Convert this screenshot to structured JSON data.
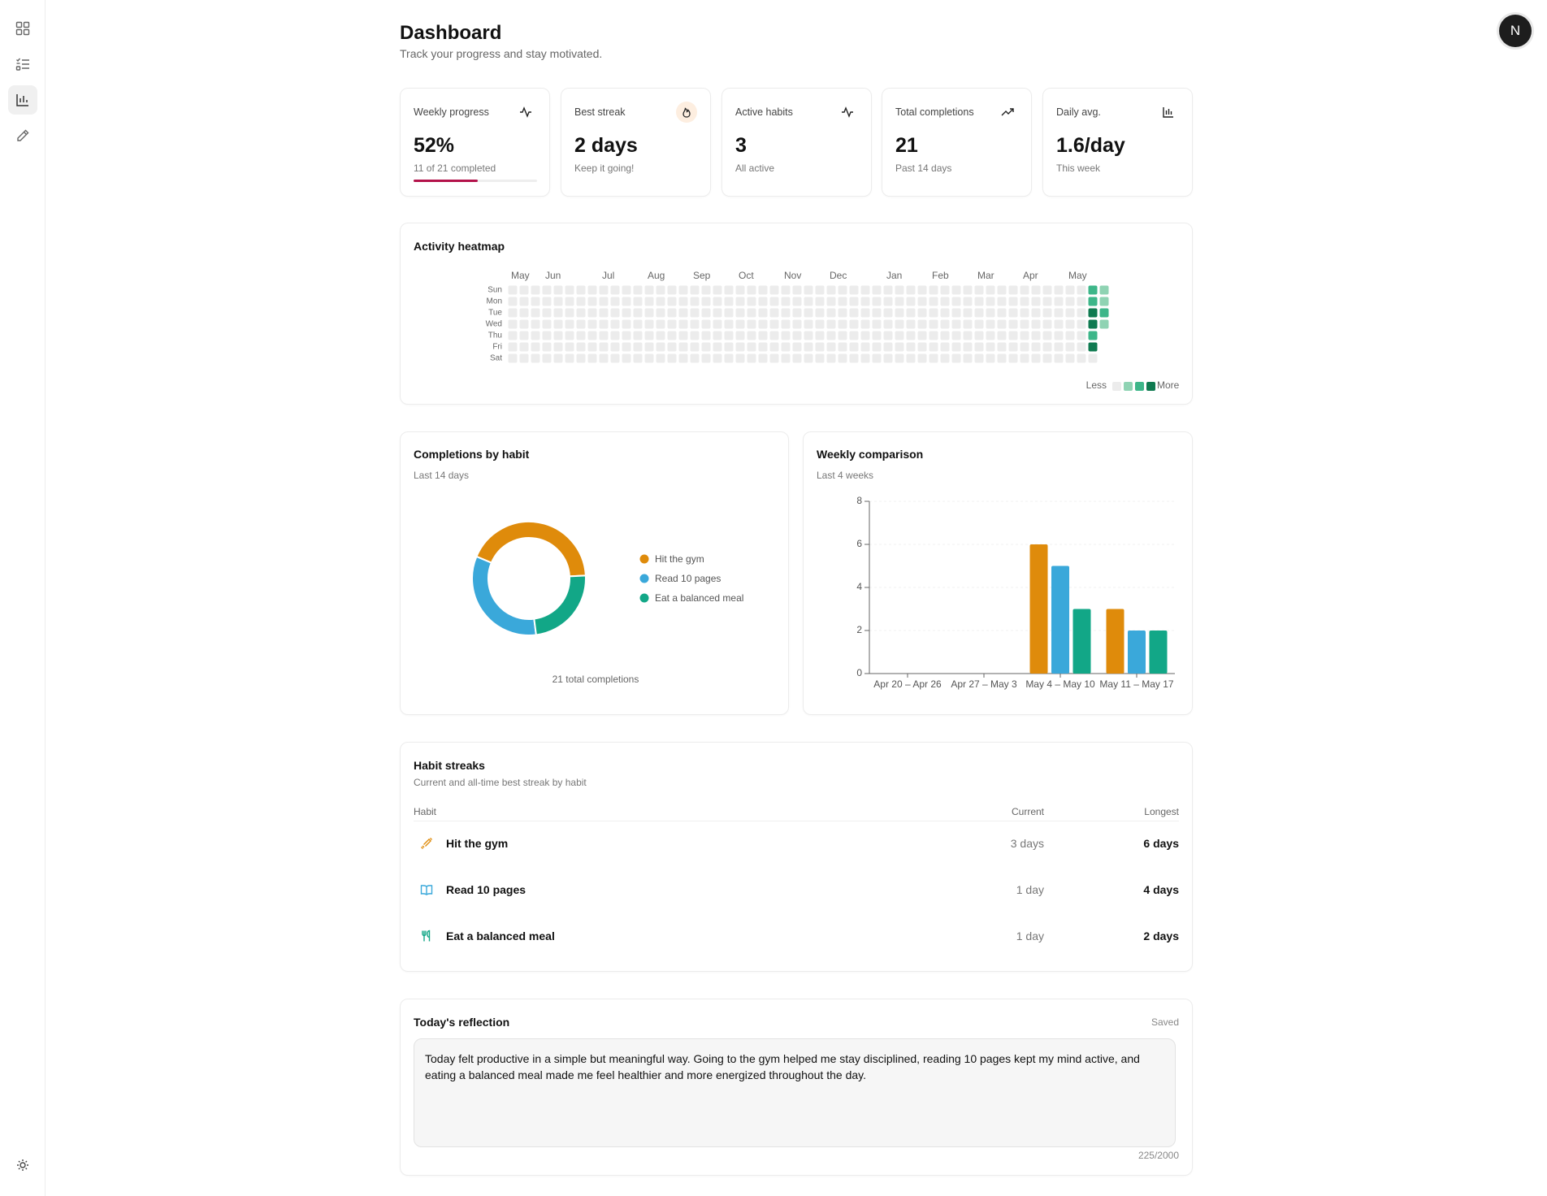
{
  "sidebar": {
    "avatar": "N"
  },
  "header": {
    "title": "Dashboard",
    "subtitle": "Track your progress and stay motivated."
  },
  "stats": [
    {
      "label": "Weekly progress",
      "value": "52%",
      "progress": 52,
      "note": "11 of 21 completed"
    },
    {
      "label": "Best streak",
      "value": "2 days",
      "note": "Keep it going!"
    },
    {
      "label": "Active habits",
      "value": "3",
      "note": "All active"
    },
    {
      "label": "Total completions",
      "value": "21",
      "note": "Past 14 days"
    },
    {
      "label": "Daily avg.",
      "value": "1.6/day",
      "note": "This week"
    }
  ],
  "heatmap": {
    "title": "Activity heatmap",
    "months": [
      "May",
      "Jun",
      "Jul",
      "Aug",
      "Sep",
      "Oct",
      "Nov",
      "Dec",
      "Jan",
      "Feb",
      "Mar",
      "Apr",
      "May"
    ],
    "days": [
      "Sun",
      "Mon",
      "Tue",
      "Wed",
      "Thu",
      "Fri",
      "Sat"
    ],
    "colors": [
      "#ececec",
      "#8fd3b3",
      "#3db689",
      "#0f7a50"
    ],
    "legend_less": "Less",
    "legend_more": "More",
    "weeks": [
      [
        0,
        0,
        0,
        0,
        0,
        0,
        0
      ],
      [
        0,
        0,
        0,
        0,
        0,
        0,
        0
      ],
      [
        0,
        0,
        0,
        0,
        0,
        0,
        0
      ],
      [
        0,
        0,
        0,
        0,
        0,
        0,
        0
      ],
      [
        0,
        0,
        0,
        0,
        0,
        0,
        0
      ],
      [
        0,
        0,
        0,
        0,
        0,
        0,
        0
      ],
      [
        0,
        0,
        0,
        0,
        0,
        0,
        0
      ],
      [
        0,
        0,
        0,
        0,
        0,
        0,
        0
      ],
      [
        0,
        0,
        0,
        0,
        0,
        0,
        0
      ],
      [
        0,
        0,
        0,
        0,
        0,
        0,
        0
      ],
      [
        0,
        0,
        0,
        0,
        0,
        0,
        0
      ],
      [
        0,
        0,
        0,
        0,
        0,
        0,
        0
      ],
      [
        0,
        0,
        0,
        0,
        0,
        0,
        0
      ],
      [
        0,
        0,
        0,
        0,
        0,
        0,
        0
      ],
      [
        0,
        0,
        0,
        0,
        0,
        0,
        0
      ],
      [
        0,
        0,
        0,
        0,
        0,
        0,
        0
      ],
      [
        0,
        0,
        0,
        0,
        0,
        0,
        0
      ],
      [
        0,
        0,
        0,
        0,
        0,
        0,
        0
      ],
      [
        0,
        0,
        0,
        0,
        0,
        0,
        0
      ],
      [
        0,
        0,
        0,
        0,
        0,
        0,
        0
      ],
      [
        0,
        0,
        0,
        0,
        0,
        0,
        0
      ],
      [
        0,
        0,
        0,
        0,
        0,
        0,
        0
      ],
      [
        0,
        0,
        0,
        0,
        0,
        0,
        0
      ],
      [
        0,
        0,
        0,
        0,
        0,
        0,
        0
      ],
      [
        0,
        0,
        0,
        0,
        0,
        0,
        0
      ],
      [
        0,
        0,
        0,
        0,
        0,
        0,
        0
      ],
      [
        0,
        0,
        0,
        0,
        0,
        0,
        0
      ],
      [
        0,
        0,
        0,
        0,
        0,
        0,
        0
      ],
      [
        0,
        0,
        0,
        0,
        0,
        0,
        0
      ],
      [
        0,
        0,
        0,
        0,
        0,
        0,
        0
      ],
      [
        0,
        0,
        0,
        0,
        0,
        0,
        0
      ],
      [
        0,
        0,
        0,
        0,
        0,
        0,
        0
      ],
      [
        0,
        0,
        0,
        0,
        0,
        0,
        0
      ],
      [
        0,
        0,
        0,
        0,
        0,
        0,
        0
      ],
      [
        0,
        0,
        0,
        0,
        0,
        0,
        0
      ],
      [
        0,
        0,
        0,
        0,
        0,
        0,
        0
      ],
      [
        0,
        0,
        0,
        0,
        0,
        0,
        0
      ],
      [
        0,
        0,
        0,
        0,
        0,
        0,
        0
      ],
      [
        0,
        0,
        0,
        0,
        0,
        0,
        0
      ],
      [
        0,
        0,
        0,
        0,
        0,
        0,
        0
      ],
      [
        0,
        0,
        0,
        0,
        0,
        0,
        0
      ],
      [
        0,
        0,
        0,
        0,
        0,
        0,
        0
      ],
      [
        0,
        0,
        0,
        0,
        0,
        0,
        0
      ],
      [
        0,
        0,
        0,
        0,
        0,
        0,
        0
      ],
      [
        0,
        0,
        0,
        0,
        0,
        0,
        0
      ],
      [
        0,
        0,
        0,
        0,
        0,
        0,
        0
      ],
      [
        0,
        0,
        0,
        0,
        0,
        0,
        0
      ],
      [
        0,
        0,
        0,
        0,
        0,
        0,
        0
      ],
      [
        0,
        0,
        0,
        0,
        0,
        0,
        0
      ],
      [
        0,
        0,
        0,
        0,
        0,
        0,
        0
      ],
      [
        0,
        0,
        0,
        0,
        0,
        0,
        0
      ],
      [
        2,
        2,
        3,
        3,
        2,
        3,
        0
      ],
      [
        1,
        1,
        2,
        1,
        null,
        null,
        null
      ]
    ]
  },
  "completions_by_habit": {
    "type": "pie",
    "title": "Completions by habit",
    "subtitle": "Last 14 days",
    "categories": [
      "Hit the gym",
      "Read 10 pages",
      "Eat a balanced meal"
    ],
    "values": [
      9,
      7,
      5
    ],
    "colors": [
      "#df8b0b",
      "#3aa8da",
      "#12a787"
    ],
    "total_label": "21 total completions"
  },
  "weekly_comparison": {
    "type": "bar",
    "title": "Weekly comparison",
    "subtitle": "Last 4 weeks",
    "categories": [
      "Apr 20 – Apr 26",
      "Apr 27 – May 3",
      "May 4 – May 10",
      "May 11 – May 17"
    ],
    "series": [
      {
        "color": "#df8b0b",
        "values": [
          0,
          0,
          6,
          3
        ]
      },
      {
        "color": "#3aa8da",
        "values": [
          0,
          0,
          5,
          2
        ]
      },
      {
        "color": "#12a787",
        "values": [
          0,
          0,
          3,
          2
        ]
      }
    ],
    "ylim": [
      0,
      8
    ],
    "yticks": [
      0,
      2,
      4,
      6,
      8
    ],
    "grid": true
  },
  "streaks": {
    "title": "Habit streaks",
    "subtitle": "Current and all-time best streak by habit",
    "columns": [
      "Habit",
      "Current",
      "Longest"
    ],
    "rows": [
      [
        "Hit the gym",
        "3 days",
        "6 days"
      ],
      [
        "Read 10 pages",
        "1 day",
        "4 days"
      ],
      [
        "Eat a balanced meal",
        "1 day",
        "2 days"
      ]
    ]
  },
  "reflection": {
    "title": "Today's reflection",
    "status": "Saved",
    "text": "Today felt productive in a simple but meaningful way. Going to the gym helped me stay disciplined, reading 10 pages kept my mind active, and eating a balanced meal made me feel healthier and more energized throughout the day.",
    "counter": "225/2000"
  }
}
